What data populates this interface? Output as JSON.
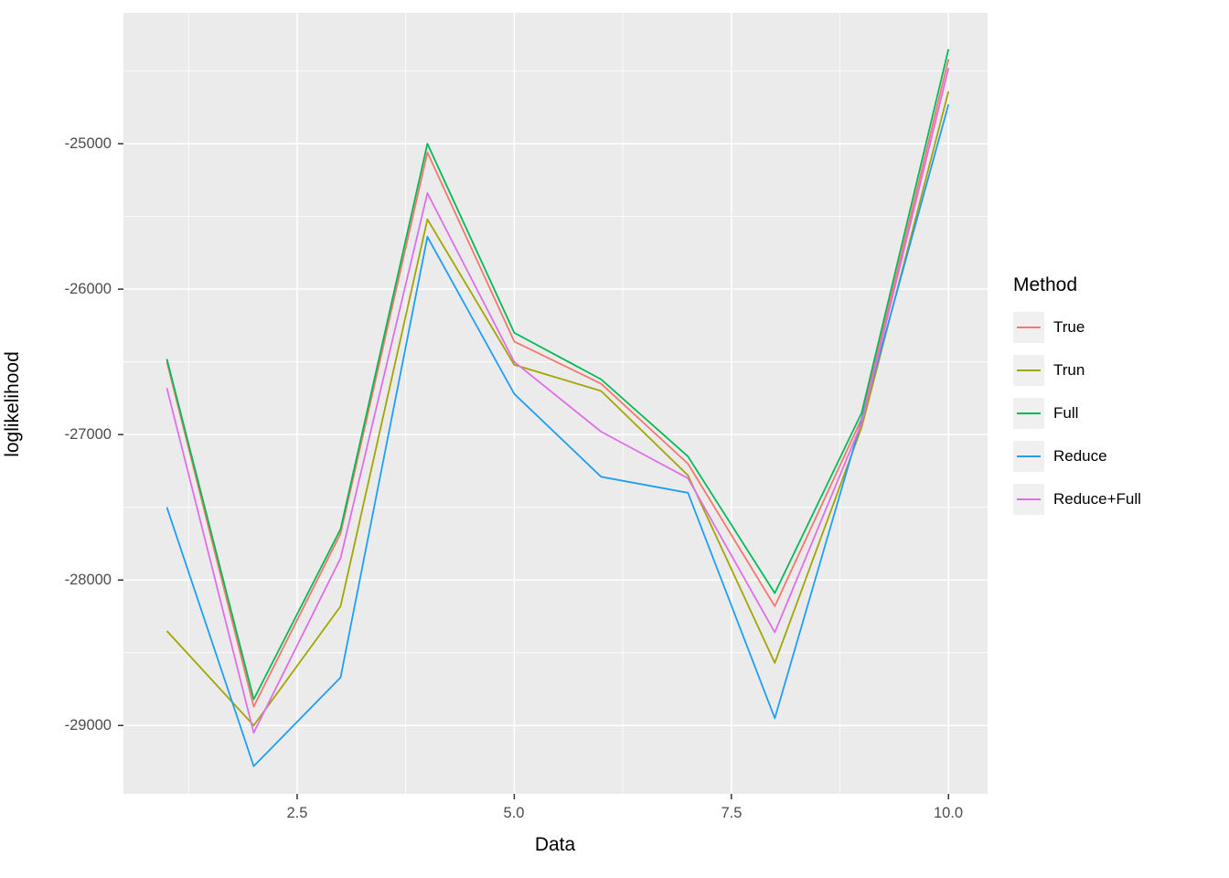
{
  "figure": {
    "x_axis": {
      "title": "Data",
      "ticks": [
        "2.5",
        "5.0",
        "7.5",
        "10.0"
      ]
    },
    "y_axis": {
      "title": "loglikelihood",
      "ticks": [
        "-25000",
        "-26000",
        "-27000",
        "-28000",
        "-29000"
      ]
    },
    "legend": {
      "title": "Method"
    }
  },
  "chart_data": {
    "type": "line",
    "title": "",
    "xlabel": "Data",
    "ylabel": "loglikelihood",
    "x": [
      1,
      2,
      3,
      4,
      5,
      6,
      7,
      8,
      9,
      10
    ],
    "series": [
      {
        "name": "True",
        "color": "#F8766D",
        "values": [
          -26500,
          -28870,
          -27680,
          -25060,
          -26360,
          -26650,
          -27200,
          -28180,
          -26890,
          -24420
        ]
      },
      {
        "name": "Trun",
        "color": "#A3A500",
        "values": [
          -28350,
          -29000,
          -28180,
          -25520,
          -26520,
          -26700,
          -27280,
          -28570,
          -26950,
          -24640
        ]
      },
      {
        "name": "Full",
        "color": "#00BA57",
        "values": [
          -26480,
          -28820,
          -27650,
          -25000,
          -26300,
          -26620,
          -27150,
          -28090,
          -26850,
          -24350
        ]
      },
      {
        "name": "Reduce",
        "color": "#1E9FF2",
        "values": [
          -27500,
          -29280,
          -28670,
          -25640,
          -26720,
          -27290,
          -27400,
          -28950,
          -26900,
          -24730
        ]
      },
      {
        "name": "Reduce+Full",
        "color": "#E06EE8",
        "values": [
          -26680,
          -29050,
          -27850,
          -25340,
          -26500,
          -26980,
          -27300,
          -28360,
          -26920,
          -24480
        ]
      }
    ],
    "xlim": [
      0.5,
      10.45
    ],
    "ylim": [
      -29470,
      -24100
    ],
    "x_major_ticks": [
      2.5,
      5,
      7.5,
      10
    ],
    "x_minor_ticks": [
      1.25,
      3.75,
      6.25,
      8.75
    ],
    "y_major_ticks": [
      -25000,
      -26000,
      -27000,
      -28000,
      -29000
    ],
    "y_minor_ticks": [
      -24500,
      -25500,
      -26500,
      -27500,
      -28500
    ],
    "panel_bg": "#EBEBEB",
    "grid_color": "#FFFFFF",
    "tick_color": "#333333",
    "legend_position": "right",
    "legend_key_bg": "#F0F0F0"
  }
}
